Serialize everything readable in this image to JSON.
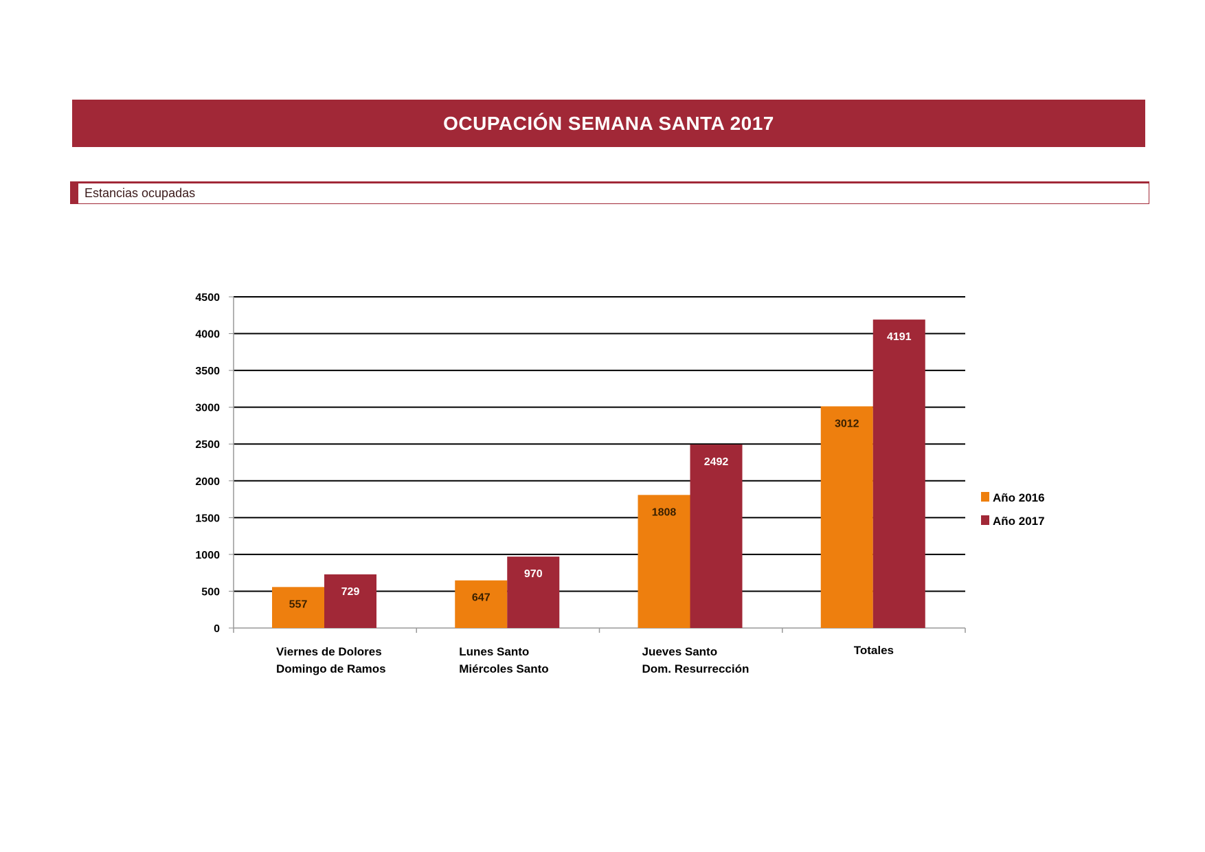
{
  "header": {
    "title": "OCUPACIÓN SEMANA SANTA 2017"
  },
  "section": {
    "title": "Estancias ocupadas"
  },
  "chart_data": {
    "type": "bar",
    "title": "Estancias ocupadas",
    "categories": [
      [
        "Viernes de Dolores",
        "Domingo de Ramos"
      ],
      [
        "Lunes Santo",
        "Miércoles Santo"
      ],
      [
        "Jueves Santo",
        "Dom. Resurrección"
      ],
      [
        "Totales"
      ]
    ],
    "series": [
      {
        "name": "Año 2016",
        "color": "#ee7f0e",
        "values": [
          557,
          647,
          1808,
          3012
        ]
      },
      {
        "name": "Año 2017",
        "color": "#a12837",
        "values": [
          729,
          970,
          2492,
          4191
        ]
      }
    ],
    "ylim": [
      0,
      4500
    ],
    "yticks": [
      0,
      500,
      1000,
      1500,
      2000,
      2500,
      3000,
      3500,
      4000,
      4500
    ],
    "grid": true,
    "legend": "right",
    "xlabel": "",
    "ylabel": ""
  }
}
